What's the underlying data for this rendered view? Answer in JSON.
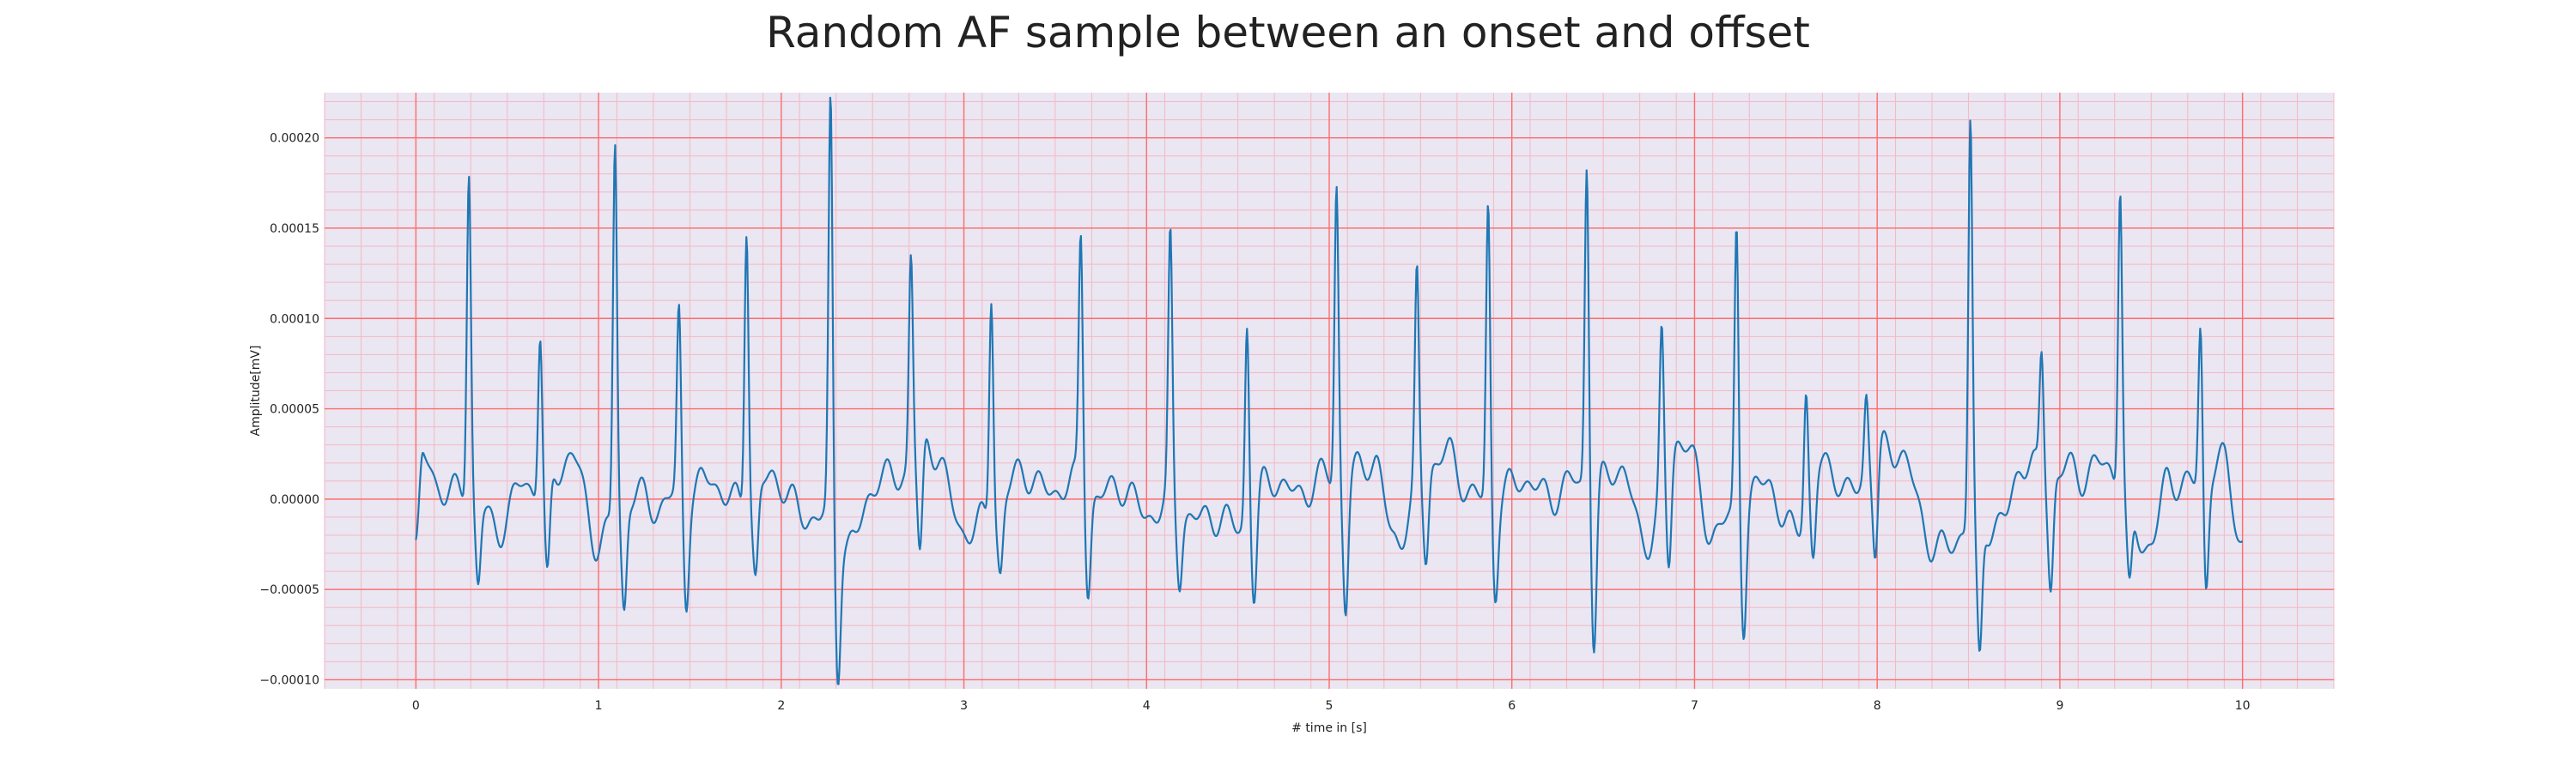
{
  "chart_data": {
    "type": "line",
    "title": "Random AF sample between an onset and offset",
    "xlabel": "# time in [s]",
    "ylabel": "Amplitude[mV]",
    "xlim": [
      -0.5,
      10.5
    ],
    "ylim": [
      -0.000105,
      0.000225
    ],
    "xticks": [
      0,
      1,
      2,
      3,
      4,
      5,
      6,
      7,
      8,
      9,
      10
    ],
    "xtick_labels": [
      "0",
      "1",
      "2",
      "3",
      "4",
      "5",
      "6",
      "7",
      "8",
      "9",
      "10"
    ],
    "yticks": [
      -0.0001,
      -5e-05,
      0.0,
      5e-05,
      0.0001,
      0.00015,
      0.0002
    ],
    "ytick_labels": [
      "−0.00010",
      "−0.00005",
      "0.00000",
      "0.00005",
      "0.00010",
      "0.00015",
      "0.00020"
    ],
    "grid": true,
    "grid_major_color": "#ff6b6b",
    "grid_minor_color": "#f4b8c4",
    "plot_background": "#eae6f2",
    "line_color": "#1f77b4",
    "series": [
      {
        "r_peaks": [
          [
            0.29,
            0.000181
          ],
          [
            0.68,
            9.6e-05
          ],
          [
            1.09,
            0.000196
          ],
          [
            1.44,
            0.000101
          ],
          [
            1.81,
            0.00016
          ],
          [
            2.27,
            0.000214
          ],
          [
            2.71,
            0.000137
          ],
          [
            3.15,
            0.000118
          ],
          [
            3.64,
            0.000145
          ],
          [
            4.13,
            0.000137
          ],
          [
            4.55,
            0.000102
          ],
          [
            5.04,
            0.000177
          ],
          [
            5.48,
            0.000118
          ],
          [
            5.87,
            0.000165
          ],
          [
            6.41,
            0.00019
          ],
          [
            6.82,
            8.8e-05
          ],
          [
            7.23,
            0.000154
          ],
          [
            7.61,
            6.3e-05
          ],
          [
            7.94,
            5.6e-05
          ],
          [
            8.51,
            0.000207
          ],
          [
            8.9,
            8.5e-05
          ],
          [
            9.33,
            0.000173
          ],
          [
            9.77,
            0.000103
          ]
        ],
        "s_troughs": [
          [
            0.34,
            -5e-05
          ],
          [
            0.72,
            -4.5e-05
          ],
          [
            1.14,
            -6.4e-05
          ],
          [
            1.48,
            -5.3e-05
          ],
          [
            1.86,
            -4.3e-05
          ],
          [
            2.31,
            -9.4e-05
          ],
          [
            2.76,
            -3.8e-05
          ],
          [
            3.2,
            -3.7e-05
          ],
          [
            3.68,
            -4.6e-05
          ],
          [
            4.18,
            -4.4e-05
          ],
          [
            4.59,
            -5.2e-05
          ],
          [
            5.09,
            -5.6e-05
          ],
          [
            5.53,
            -3.4e-05
          ],
          [
            5.91,
            -4.5e-05
          ],
          [
            6.45,
            -7.6e-05
          ],
          [
            6.86,
            -4.1e-05
          ],
          [
            7.27,
            -6.3e-05
          ],
          [
            7.65,
            -3.8e-05
          ],
          [
            7.99,
            -3.3e-05
          ],
          [
            8.56,
            -9.4e-05
          ],
          [
            8.95,
            -4.5e-05
          ],
          [
            9.38,
            -5.6e-05
          ],
          [
            9.8,
            -4.9e-05
          ]
        ],
        "baseline_points": [
          [
            0.0,
            -3e-05
          ],
          [
            0.04,
            1.8e-05
          ],
          [
            0.12,
            1e-05
          ],
          [
            0.22,
            5e-06
          ],
          [
            0.45,
            -1.2e-05
          ],
          [
            0.6,
            5e-06
          ],
          [
            0.85,
            2e-05
          ],
          [
            1.0,
            -2e-05
          ],
          [
            1.25,
            4e-06
          ],
          [
            1.35,
            -5e-06
          ],
          [
            1.6,
            1.2e-05
          ],
          [
            1.7,
            -2e-06
          ],
          [
            2.0,
            8e-06
          ],
          [
            2.15,
            -1e-05
          ],
          [
            2.4,
            -2e-05
          ],
          [
            2.55,
            1.2e-05
          ],
          [
            2.85,
            2.8e-05
          ],
          [
            3.0,
            -2e-05
          ],
          [
            3.35,
            1.2e-05
          ],
          [
            3.5,
            6e-06
          ],
          [
            3.85,
            4e-06
          ],
          [
            4.0,
            -5e-06
          ],
          [
            4.3,
            -8e-06
          ],
          [
            4.45,
            -1.6e-05
          ],
          [
            4.7,
            8e-06
          ],
          [
            4.85,
            6e-06
          ],
          [
            5.25,
            1.8e-05
          ],
          [
            5.35,
            -1.8e-05
          ],
          [
            5.65,
            2.8e-05
          ],
          [
            5.78,
            -2e-06
          ],
          [
            6.1,
            8e-06
          ],
          [
            6.25,
            4e-06
          ],
          [
            6.6,
            1.4e-05
          ],
          [
            6.72,
            -2e-05
          ],
          [
            6.95,
            3.5e-05
          ],
          [
            7.1,
            -2e-05
          ],
          [
            7.4,
            8e-06
          ],
          [
            7.5,
            -1.5e-05
          ],
          [
            7.75,
            1.8e-05
          ],
          [
            7.85,
            5e-06
          ],
          [
            8.1,
            3.2e-05
          ],
          [
            8.3,
            -2.5e-05
          ],
          [
            8.7,
            -1e-05
          ],
          [
            8.8,
            1.8e-05
          ],
          [
            9.1,
            1.2e-05
          ],
          [
            9.2,
            2.2e-05
          ],
          [
            9.5,
            -2.2e-05
          ],
          [
            9.6,
            8e-06
          ],
          [
            9.9,
            1.6e-05
          ],
          [
            10.0,
            -2e-05
          ]
        ]
      }
    ]
  }
}
